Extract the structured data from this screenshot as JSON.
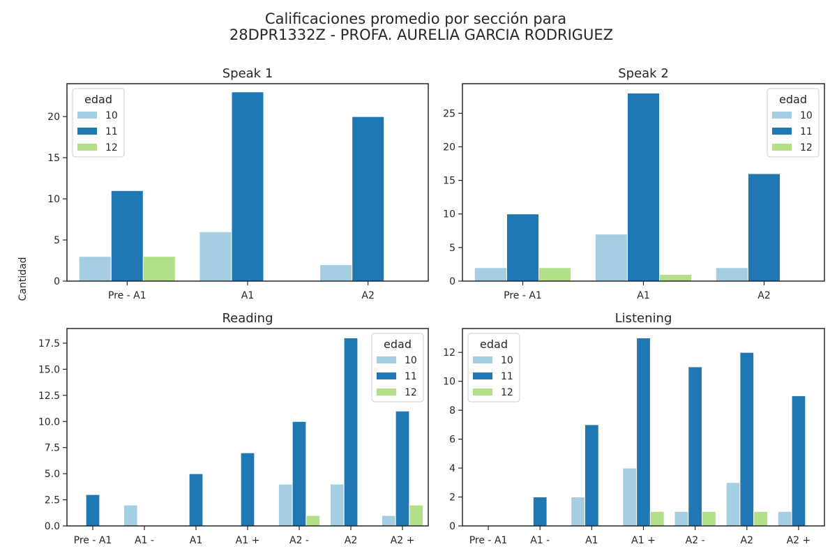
{
  "title_line1": "Calificaciones promedio por sección para",
  "title_line2": "28DPR1332Z - PROFA. AURELIA GARCIA RODRIGUEZ",
  "ylabel": "Cantidad",
  "legend_title": "edad",
  "colors": {
    "10": "#a6cee3",
    "11": "#1f78b4",
    "12": "#b2df8a"
  },
  "chart_data": [
    {
      "type": "bar",
      "title": "Speak 1",
      "categories": [
        "Pre - A1",
        "A1",
        "A2"
      ],
      "series": [
        {
          "name": "10",
          "values": [
            3,
            6,
            2
          ]
        },
        {
          "name": "11",
          "values": [
            11,
            23,
            20
          ]
        },
        {
          "name": "12",
          "values": [
            3,
            0,
            0
          ]
        }
      ],
      "ylim": [
        0,
        24
      ],
      "yticks": [
        0,
        5,
        10,
        15,
        20
      ],
      "ytick_labels": [
        "0",
        "5",
        "10",
        "15",
        "20"
      ],
      "legend": "top-left"
    },
    {
      "type": "bar",
      "title": "Speak 2",
      "categories": [
        "Pre - A1",
        "A1",
        "A2"
      ],
      "series": [
        {
          "name": "10",
          "values": [
            2,
            7,
            2
          ]
        },
        {
          "name": "11",
          "values": [
            10,
            28,
            16
          ]
        },
        {
          "name": "12",
          "values": [
            2,
            1,
            0
          ]
        }
      ],
      "ylim": [
        0,
        29.4
      ],
      "yticks": [
        0,
        5,
        10,
        15,
        20,
        25
      ],
      "ytick_labels": [
        "0",
        "5",
        "10",
        "15",
        "20",
        "25"
      ],
      "legend": "top-right"
    },
    {
      "type": "bar",
      "title": "Reading",
      "categories": [
        "Pre - A1",
        "A1 -",
        "A1",
        "A1 +",
        "A2 -",
        "A2",
        "A2 +"
      ],
      "series": [
        {
          "name": "10",
          "values": [
            0,
            2,
            0,
            0,
            4,
            4,
            1
          ]
        },
        {
          "name": "11",
          "values": [
            3,
            0,
            5,
            7,
            10,
            18,
            11
          ]
        },
        {
          "name": "12",
          "values": [
            0,
            0,
            0,
            0,
            1,
            0,
            2
          ]
        }
      ],
      "ylim": [
        0,
        18.9
      ],
      "yticks": [
        0,
        2.5,
        5,
        7.5,
        10,
        12.5,
        15,
        17.5
      ],
      "ytick_labels": [
        "0.0",
        "2.5",
        "5.0",
        "7.5",
        "10.0",
        "12.5",
        "15.0",
        "17.5"
      ],
      "legend": "top-right"
    },
    {
      "type": "bar",
      "title": "Listening",
      "categories": [
        "Pre - A1",
        "A1 -",
        "A1",
        "A1 +",
        "A2 -",
        "A2",
        "A2 +"
      ],
      "series": [
        {
          "name": "10",
          "values": [
            0,
            0,
            2,
            4,
            1,
            3,
            1
          ]
        },
        {
          "name": "11",
          "values": [
            0,
            2,
            7,
            13,
            11,
            12,
            9
          ]
        },
        {
          "name": "12",
          "values": [
            0,
            0,
            0,
            1,
            1,
            1,
            0
          ]
        }
      ],
      "ylim": [
        0,
        13.65
      ],
      "yticks": [
        0,
        2,
        4,
        6,
        8,
        10,
        12
      ],
      "ytick_labels": [
        "0",
        "2",
        "4",
        "6",
        "8",
        "10",
        "12"
      ],
      "legend": "top-left"
    }
  ]
}
